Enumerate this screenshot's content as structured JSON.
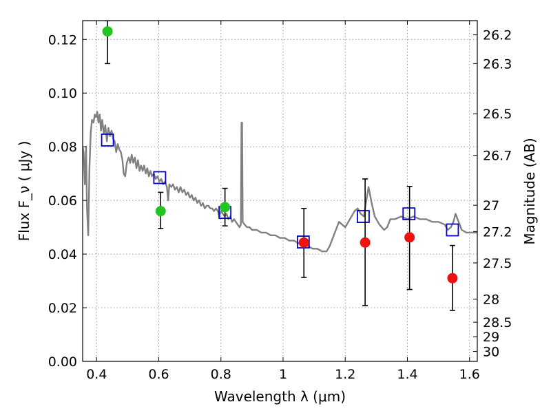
{
  "chart_data": {
    "type": "scatter",
    "xlabel": "Wavelength  λ (μm)",
    "ylabel": "Flux  F_ν  ( μJy )",
    "y2label": "Magnitude (AB)",
    "xlim": [
      0.355,
      1.625
    ],
    "ylim": [
      0.0,
      0.127
    ],
    "grid": true,
    "x_ticks": [
      0.4,
      0.6,
      0.8,
      1.0,
      1.2,
      1.4,
      1.6
    ],
    "x_tick_labels": [
      "0.4",
      "0.6",
      "0.8",
      "1",
      "1.2",
      "1.4",
      "1.6"
    ],
    "y_ticks": [
      0.0,
      0.02,
      0.04,
      0.06,
      0.08,
      0.1,
      0.12
    ],
    "y_tick_labels": [
      "0.00",
      "0.02",
      "0.04",
      "0.06",
      "0.08",
      "0.10",
      "0.12"
    ],
    "y2_ticks": [
      {
        "label": "26.2",
        "flux": 0.1217
      },
      {
        "label": "26.3",
        "flux": 0.111
      },
      {
        "label": "26.5",
        "flux": 0.0923
      },
      {
        "label": "26.7",
        "flux": 0.0768
      },
      {
        "label": "27",
        "flux": 0.0582
      },
      {
        "label": "27.2",
        "flux": 0.0484
      },
      {
        "label": "27.5",
        "flux": 0.0367
      },
      {
        "label": "28",
        "flux": 0.0232
      },
      {
        "label": "28.5",
        "flux": 0.0146
      },
      {
        "label": "29",
        "flux": 0.0092
      },
      {
        "label": "30",
        "flux": 0.0037
      }
    ],
    "colors": {
      "sed": "#808080",
      "model": "#0000cc",
      "detection": "#22c422",
      "upper": "#ee1111",
      "errorbar": "#000000",
      "grid": "#999999"
    },
    "series": [
      {
        "kind": "line",
        "points": [
          [
            0.355,
            0.08
          ],
          [
            0.358,
            0.078
          ],
          [
            0.362,
            0.066
          ],
          [
            0.366,
            0.08
          ],
          [
            0.369,
            0.057
          ],
          [
            0.373,
            0.047
          ],
          [
            0.377,
            0.072
          ],
          [
            0.381,
            0.085
          ],
          [
            0.385,
            0.09
          ],
          [
            0.39,
            0.089
          ],
          [
            0.394,
            0.092
          ],
          [
            0.398,
            0.091
          ],
          [
            0.402,
            0.093
          ],
          [
            0.406,
            0.089
          ],
          [
            0.41,
            0.092
          ],
          [
            0.414,
            0.086
          ],
          [
            0.418,
            0.09
          ],
          [
            0.423,
            0.085
          ],
          [
            0.428,
            0.088
          ],
          [
            0.433,
            0.082
          ],
          [
            0.438,
            0.087
          ],
          [
            0.443,
            0.084
          ],
          [
            0.448,
            0.086
          ],
          [
            0.453,
            0.083
          ],
          [
            0.458,
            0.082
          ],
          [
            0.463,
            0.078
          ],
          [
            0.468,
            0.081
          ],
          [
            0.473,
            0.079
          ],
          [
            0.478,
            0.078
          ],
          [
            0.483,
            0.075
          ],
          [
            0.487,
            0.07
          ],
          [
            0.492,
            0.069
          ],
          [
            0.497,
            0.074
          ],
          [
            0.503,
            0.076
          ],
          [
            0.508,
            0.074
          ],
          [
            0.513,
            0.077
          ],
          [
            0.518,
            0.074
          ],
          [
            0.523,
            0.076
          ],
          [
            0.528,
            0.072
          ],
          [
            0.533,
            0.075
          ],
          [
            0.538,
            0.071
          ],
          [
            0.543,
            0.073
          ],
          [
            0.548,
            0.071
          ],
          [
            0.553,
            0.073
          ],
          [
            0.558,
            0.07
          ],
          [
            0.563,
            0.072
          ],
          [
            0.568,
            0.069
          ],
          [
            0.573,
            0.071
          ],
          [
            0.578,
            0.069
          ],
          [
            0.584,
            0.07
          ],
          [
            0.59,
            0.068
          ],
          [
            0.596,
            0.069
          ],
          [
            0.602,
            0.067
          ],
          [
            0.608,
            0.068
          ],
          [
            0.614,
            0.066
          ],
          [
            0.62,
            0.067
          ],
          [
            0.626,
            0.065
          ],
          [
            0.63,
            0.06
          ],
          [
            0.634,
            0.066
          ],
          [
            0.64,
            0.065
          ],
          [
            0.646,
            0.066
          ],
          [
            0.652,
            0.064
          ],
          [
            0.658,
            0.065
          ],
          [
            0.664,
            0.063
          ],
          [
            0.67,
            0.065
          ],
          [
            0.676,
            0.063
          ],
          [
            0.682,
            0.064
          ],
          [
            0.688,
            0.062
          ],
          [
            0.694,
            0.063
          ],
          [
            0.7,
            0.061
          ],
          [
            0.706,
            0.062
          ],
          [
            0.712,
            0.06
          ],
          [
            0.718,
            0.061
          ],
          [
            0.724,
            0.059
          ],
          [
            0.73,
            0.06
          ],
          [
            0.736,
            0.058
          ],
          [
            0.742,
            0.059
          ],
          [
            0.748,
            0.057
          ],
          [
            0.754,
            0.058
          ],
          [
            0.76,
            0.058
          ],
          [
            0.766,
            0.057
          ],
          [
            0.772,
            0.057
          ],
          [
            0.778,
            0.056
          ],
          [
            0.784,
            0.057
          ],
          [
            0.79,
            0.056
          ],
          [
            0.795,
            0.054
          ],
          [
            0.8,
            0.056
          ],
          [
            0.806,
            0.055
          ],
          [
            0.812,
            0.054
          ],
          [
            0.818,
            0.055
          ],
          [
            0.824,
            0.053
          ],
          [
            0.83,
            0.054
          ],
          [
            0.836,
            0.052
          ],
          [
            0.842,
            0.053
          ],
          [
            0.848,
            0.052
          ],
          [
            0.854,
            0.051
          ],
          [
            0.86,
            0.05
          ],
          [
            0.864,
            0.051
          ],
          [
            0.866,
            0.089
          ],
          [
            0.868,
            0.089
          ],
          [
            0.87,
            0.052
          ],
          [
            0.876,
            0.051
          ],
          [
            0.884,
            0.05
          ],
          [
            0.892,
            0.05
          ],
          [
            0.9,
            0.049
          ],
          [
            0.915,
            0.049
          ],
          [
            0.93,
            0.048
          ],
          [
            0.945,
            0.048
          ],
          [
            0.96,
            0.047
          ],
          [
            0.975,
            0.047
          ],
          [
            0.99,
            0.046
          ],
          [
            1.005,
            0.046
          ],
          [
            1.02,
            0.045
          ],
          [
            1.035,
            0.045
          ],
          [
            1.05,
            0.044
          ],
          [
            1.065,
            0.044
          ],
          [
            1.08,
            0.043
          ],
          [
            1.095,
            0.042
          ],
          [
            1.11,
            0.042
          ],
          [
            1.125,
            0.041
          ],
          [
            1.14,
            0.041
          ],
          [
            1.15,
            0.043
          ],
          [
            1.16,
            0.046
          ],
          [
            1.17,
            0.049
          ],
          [
            1.18,
            0.052
          ],
          [
            1.19,
            0.051
          ],
          [
            1.2,
            0.05
          ],
          [
            1.21,
            0.052
          ],
          [
            1.22,
            0.054
          ],
          [
            1.23,
            0.056
          ],
          [
            1.24,
            0.057
          ],
          [
            1.25,
            0.055
          ],
          [
            1.26,
            0.054
          ],
          [
            1.268,
            0.06
          ],
          [
            1.275,
            0.065
          ],
          [
            1.285,
            0.059
          ],
          [
            1.295,
            0.054
          ],
          [
            1.31,
            0.051
          ],
          [
            1.325,
            0.049
          ],
          [
            1.335,
            0.05
          ],
          [
            1.345,
            0.053
          ],
          [
            1.36,
            0.053
          ],
          [
            1.38,
            0.054
          ],
          [
            1.4,
            0.053
          ],
          [
            1.42,
            0.054
          ],
          [
            1.44,
            0.053
          ],
          [
            1.46,
            0.053
          ],
          [
            1.48,
            0.052
          ],
          [
            1.5,
            0.052
          ],
          [
            1.52,
            0.051
          ],
          [
            1.53,
            0.049
          ],
          [
            1.54,
            0.05
          ],
          [
            1.548,
            0.052
          ],
          [
            1.555,
            0.055
          ],
          [
            1.565,
            0.052
          ],
          [
            1.575,
            0.049
          ],
          [
            1.59,
            0.048
          ],
          [
            1.605,
            0.048
          ],
          [
            1.625,
            0.048
          ]
        ]
      },
      {
        "kind": "open-squares",
        "points": [
          [
            0.435,
            0.0825
          ],
          [
            0.603,
            0.0685
          ],
          [
            0.813,
            0.0555
          ],
          [
            1.065,
            0.0445
          ],
          [
            1.258,
            0.054
          ],
          [
            1.405,
            0.055
          ],
          [
            1.545,
            0.049
          ]
        ]
      },
      {
        "kind": "filled-circles",
        "color": "green",
        "points": [
          {
            "x": 0.435,
            "y": 0.123,
            "ylo": 0.111,
            "yhi": 0.127
          },
          {
            "x": 0.606,
            "y": 0.056,
            "ylo": 0.0495,
            "yhi": 0.063
          },
          {
            "x": 0.813,
            "y": 0.0575,
            "ylo": 0.0505,
            "yhi": 0.0645
          }
        ]
      },
      {
        "kind": "filled-circles",
        "color": "red",
        "points": [
          {
            "x": 1.067,
            "y": 0.0443,
            "ylo": 0.0313,
            "yhi": 0.057
          },
          {
            "x": 1.264,
            "y": 0.0443,
            "ylo": 0.0208,
            "yhi": 0.068
          },
          {
            "x": 1.407,
            "y": 0.0462,
            "ylo": 0.0268,
            "yhi": 0.0652
          },
          {
            "x": 1.545,
            "y": 0.031,
            "ylo": 0.019,
            "yhi": 0.0432
          }
        ]
      }
    ]
  }
}
